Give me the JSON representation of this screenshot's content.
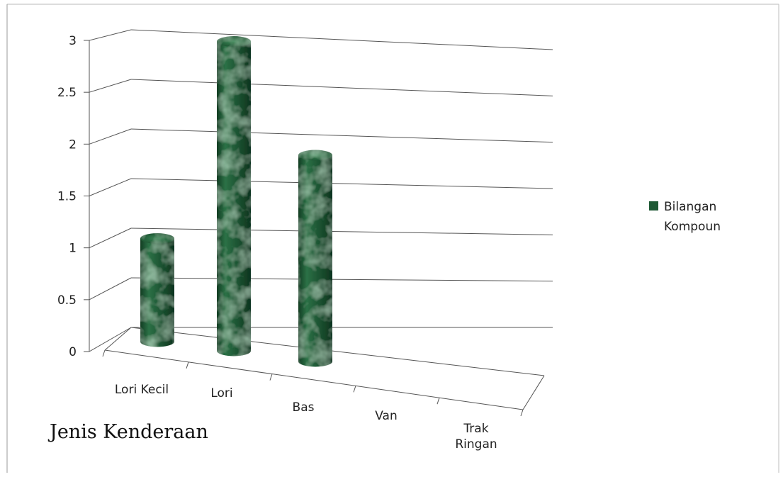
{
  "chart_data": {
    "type": "bar",
    "style": "3d-cylinder",
    "categories": [
      "Lori Kecil",
      "Lori",
      "Bas",
      "Van",
      "Trak Ringan"
    ],
    "series": [
      {
        "name": "Bilangan Kompoun",
        "values": [
          1,
          3,
          2,
          0,
          0
        ],
        "color": "#1f5a35"
      }
    ],
    "xlabel": "Jenis Kenderaan",
    "ylabel": "",
    "ylim": [
      0,
      3
    ],
    "yticks": [
      "0",
      "0.5",
      "1",
      "1.5",
      "2",
      "2.5",
      "3"
    ],
    "grid": true,
    "legend": "right"
  }
}
